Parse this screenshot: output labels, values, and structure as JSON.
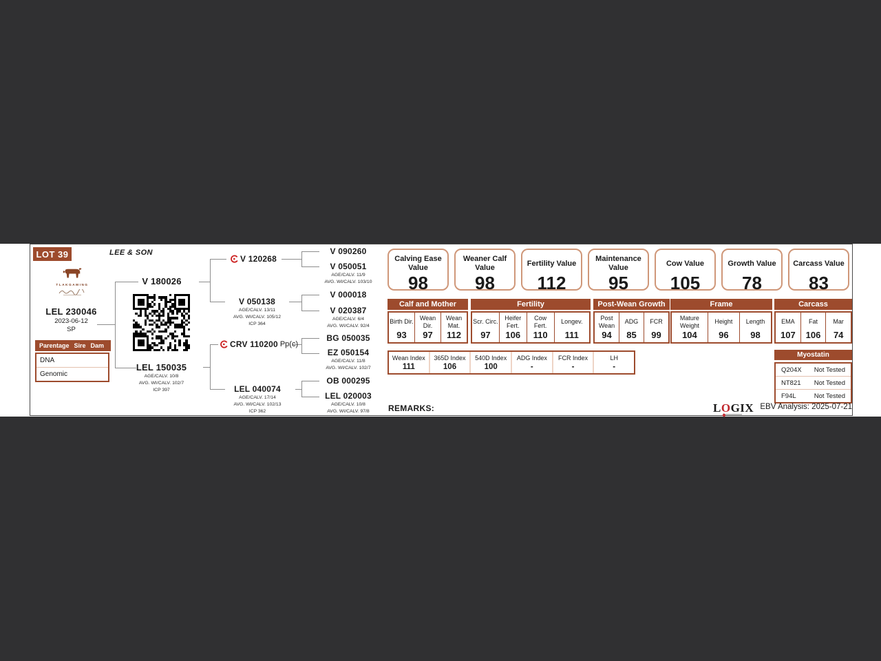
{
  "card": {
    "lot": "LOT 39",
    "breeder": "LEE & SON",
    "brand": "TLAKGAMING",
    "subject": {
      "id": "LEL 230046",
      "birth_date": "2023-06-12",
      "breed": "SP"
    },
    "parentage": {
      "header": {
        "col1": "Parentage",
        "col2": "Sire",
        "col3": "Dam"
      },
      "rows": [
        "DNA",
        "Genomic"
      ]
    }
  },
  "pedigree": {
    "sire": {
      "id": "V 180026"
    },
    "dam": {
      "id": "LEL 150035",
      "stats": [
        "AGE/CALV. 10/8",
        "AVG. WI/CALV. 102/7",
        "ICP 397"
      ]
    },
    "gen3": [
      {
        "id": "V 120268",
        "suffix": ""
      },
      {
        "id": "V 050138",
        "stats": [
          "AGE/CALV. 13/11",
          "AVG. WI/CALV. 105/12",
          "ICP 364"
        ]
      },
      {
        "id": "CRV 110200",
        "suffix": "Pp(c)"
      },
      {
        "id": "LEL 040074",
        "stats": [
          "AGE/CALV. 17/14",
          "AVG. WI/CALV. 102/13",
          "ICP 362"
        ]
      }
    ],
    "gen4": [
      {
        "id": "V 090260"
      },
      {
        "id": "V 050051",
        "stats": [
          "AGE/CALV. 11/9",
          "AVG. WI/CALV. 103/10"
        ]
      },
      {
        "id": "V 000018"
      },
      {
        "id": "V 020387",
        "stats": [
          "AGE/CALV. 6/4",
          "AVG. WI/CALV. 92/4"
        ]
      },
      {
        "id": "BG 050035"
      },
      {
        "id": "EZ 050154",
        "stats": [
          "AGE/CALV. 11/8",
          "AVG. WI/CALV. 102/7"
        ]
      },
      {
        "id": "OB 000295"
      },
      {
        "id": "LEL 020003",
        "stats": [
          "AGE/CALV. 10/8",
          "AVG. WI/CALV. 97/8"
        ]
      }
    ]
  },
  "values": [
    {
      "label": "Calving Ease Value",
      "value": "98"
    },
    {
      "label": "Weaner Calf Value",
      "value": "98"
    },
    {
      "label": "Fertility Value",
      "value": "112"
    },
    {
      "label": "Maintenance Value",
      "value": "95"
    },
    {
      "label": "Cow Value",
      "value": "105"
    },
    {
      "label": "Growth Value",
      "value": "78"
    },
    {
      "label": "Carcass Value",
      "value": "83"
    }
  ],
  "ebv_table": {
    "groups": [
      {
        "name": "Calf and Mother",
        "cols": [
          {
            "label": "Birth Dir.",
            "value": "93"
          },
          {
            "label": "Wean Dir.",
            "value": "97"
          },
          {
            "label": "Wean Mat.",
            "value": "112"
          }
        ]
      },
      {
        "name": "Fertility",
        "cols": [
          {
            "label": "Scr. Circ.",
            "value": "97"
          },
          {
            "label": "Heifer Fert.",
            "value": "106"
          },
          {
            "label": "Cow Fert.",
            "value": "110"
          },
          {
            "label": "Longev.",
            "value": "111"
          }
        ]
      },
      {
        "name": "Post-Wean Growth",
        "cols": [
          {
            "label": "Post Wean",
            "value": "94"
          },
          {
            "label": "ADG",
            "value": "85"
          },
          {
            "label": "FCR",
            "value": "99"
          }
        ]
      },
      {
        "name": "Frame",
        "cols": [
          {
            "label": "Mature Weight",
            "value": "104"
          },
          {
            "label": "Height",
            "value": "96"
          },
          {
            "label": "Length",
            "value": "98"
          }
        ]
      },
      {
        "name": "Carcass",
        "cols": [
          {
            "label": "EMA",
            "value": "107"
          },
          {
            "label": "Fat",
            "value": "106"
          },
          {
            "label": "Mar",
            "value": "74"
          }
        ]
      }
    ]
  },
  "index_table": {
    "cells": [
      {
        "label": "Wean Index",
        "value": "111"
      },
      {
        "label": "365D Index",
        "value": "106"
      },
      {
        "label": "540D Index",
        "value": "100"
      },
      {
        "label": "ADG Index",
        "value": "-"
      },
      {
        "label": "FCR Index",
        "value": "-"
      },
      {
        "label": "LH",
        "value": "-"
      }
    ]
  },
  "myostatin": {
    "title": "Myostatin",
    "rows": [
      {
        "gene": "Q204X",
        "result": "Not Tested"
      },
      {
        "gene": "NT821",
        "result": "Not Tested"
      },
      {
        "gene": "F94L",
        "result": "Not Tested"
      }
    ]
  },
  "remarks_label": "REMARKS:",
  "footer": {
    "logo_l": "L",
    "logo_o": "O",
    "logo_gix": "GIX",
    "analysis": "EBV Analysis: 2025-07-21"
  }
}
